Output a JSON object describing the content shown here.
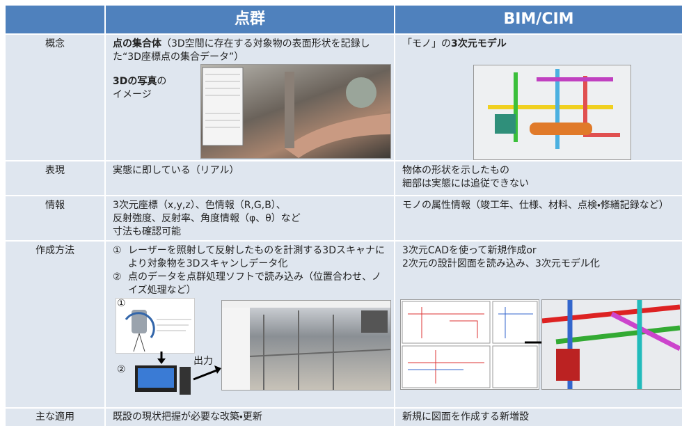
{
  "header": {
    "col1": "点群",
    "col2": "BIM/CIM"
  },
  "rows": [
    {
      "label": "概念",
      "col1": {
        "bold": "点の集合体",
        "text": "（3D空間に存在する対象物の表面形状を記録した“3D座標点の集合データ”）",
        "photo_bold": "3Dの写真",
        "photo_text": "の",
        "photo_text2": "イメージ"
      },
      "col2": {
        "text": "「モノ」の",
        "bold": "3次元モデル"
      }
    },
    {
      "label": "表現",
      "col1": [
        "実態に即している（リアル）"
      ],
      "col2": [
        "物体の形状を示したもの",
        "細部は実態には追従できない"
      ]
    },
    {
      "label": "情報",
      "col1": [
        "3次元座標（x,y,z）、色情報（R,G,B）、",
        "反射強度、反射率、角度情報（φ、θ）など",
        "寸法も確認可能"
      ],
      "col2": [
        "モノの属性情報（竣工年、仕様、材料、点検・修繕記録など）"
      ]
    },
    {
      "label": "作成方法",
      "col1": {
        "steps": [
          {
            "num": "①",
            "text": "レーザーを照射して反射したものを計測する3Dスキャナにより対象物を3Dスキャンしデータ化"
          },
          {
            "num": "②",
            "text": "点のデータを点群処理ソフトで読み込み（位置合わせ、ノイズ処理など）"
          }
        ],
        "diagram": {
          "step1": "①",
          "step2": "②",
          "output": "出力"
        }
      },
      "col2": [
        "3次元CADを使って新規作成or",
        "2次元の設計図面を読み込み、3次元モデル化"
      ]
    },
    {
      "label": "主な適用",
      "col1": [
        "既設の現状把握が必要な改築・更新"
      ],
      "col2": [
        "新規に図面を作成する新増設"
      ]
    }
  ]
}
